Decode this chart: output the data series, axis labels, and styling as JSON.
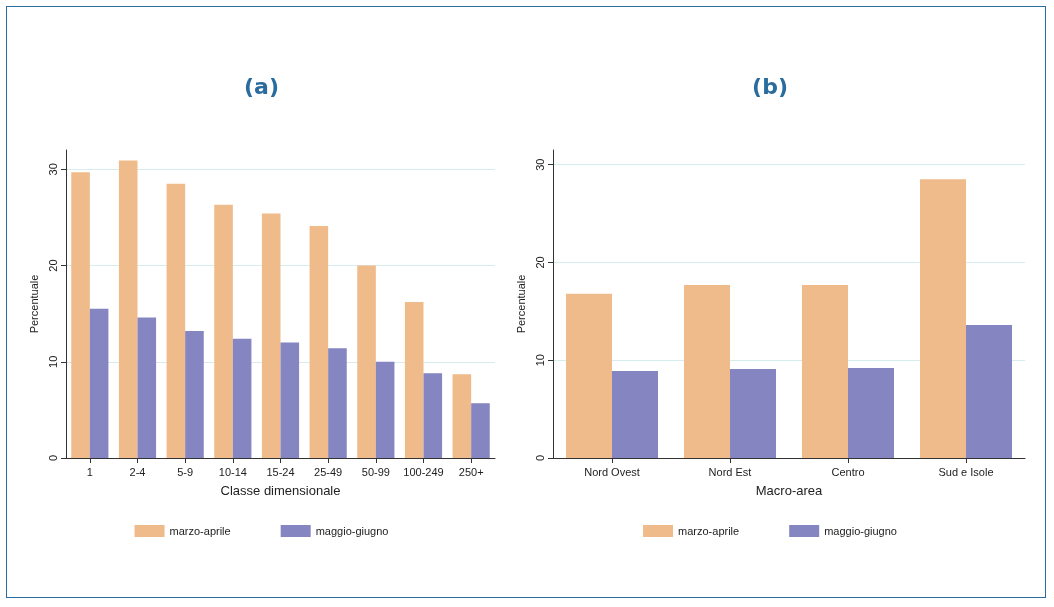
{
  "chart_data": [
    {
      "type": "bar",
      "title": "(a)",
      "xlabel": "Classe dimensionale",
      "ylabel": "Percentuale",
      "categories": [
        "1",
        "2-4",
        "5-9",
        "10-14",
        "15-24",
        "25-49",
        "50-99",
        "100-249",
        "250+"
      ],
      "series": [
        {
          "name": "marzo-aprile",
          "color": "#efbb8a",
          "values": [
            29.7,
            30.9,
            28.5,
            26.3,
            25.4,
            24.1,
            20.0,
            16.2,
            8.7
          ]
        },
        {
          "name": "maggio-giugno",
          "color": "#8585c2",
          "values": [
            15.5,
            14.6,
            13.2,
            12.4,
            12.0,
            11.4,
            10.0,
            8.8,
            5.7
          ]
        }
      ],
      "ylim": [
        0,
        32
      ],
      "yticks": [
        0,
        10,
        20,
        30
      ],
      "grid": "y",
      "legend": "bottom"
    },
    {
      "type": "bar",
      "title": "(b)",
      "xlabel": "Macro-area",
      "ylabel": "Percentuale",
      "categories": [
        "Nord Ovest",
        "Nord Est",
        "Centro",
        "Sud e Isole"
      ],
      "series": [
        {
          "name": "marzo-aprile",
          "color": "#efbb8a",
          "values": [
            16.8,
            17.7,
            17.7,
            28.5
          ]
        },
        {
          "name": "maggio-giugno",
          "color": "#8585c2",
          "values": [
            8.9,
            9.1,
            9.2,
            13.6
          ]
        }
      ],
      "ylim": [
        0,
        31.5
      ],
      "yticks": [
        0,
        10,
        20,
        30
      ],
      "grid": "y",
      "legend": "bottom"
    }
  ]
}
